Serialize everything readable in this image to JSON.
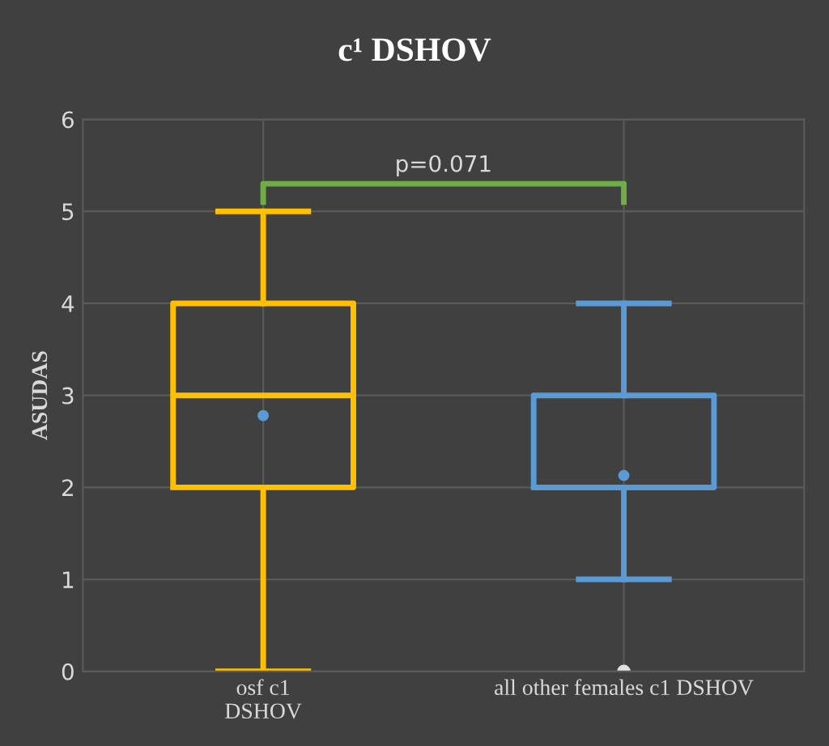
{
  "chart_data": {
    "type": "box",
    "title": "c¹ DSHOV",
    "ylabel": "ASUDAS",
    "categories": [
      "osf c1\nDSHOV",
      "all other females c1 DSHOV"
    ],
    "series": [
      {
        "color": "#ffc000",
        "boxes": [
          {
            "low": 0,
            "q1": 2,
            "median": 3,
            "q3": 4,
            "high": 5,
            "mean": 2.78
          },
          null
        ]
      },
      {
        "color": "#5b9bd5",
        "boxes": [
          null,
          {
            "low": 1,
            "q1": 2,
            "median": 2,
            "q3": 3,
            "high": 4,
            "mean": 2.13,
            "outliers": [
              0
            ]
          }
        ]
      }
    ],
    "ylim": [
      0,
      6
    ],
    "yticks": [
      0,
      1,
      2,
      3,
      4,
      5,
      6
    ],
    "grid": true,
    "annotations": [
      "p=0.071"
    ]
  }
}
